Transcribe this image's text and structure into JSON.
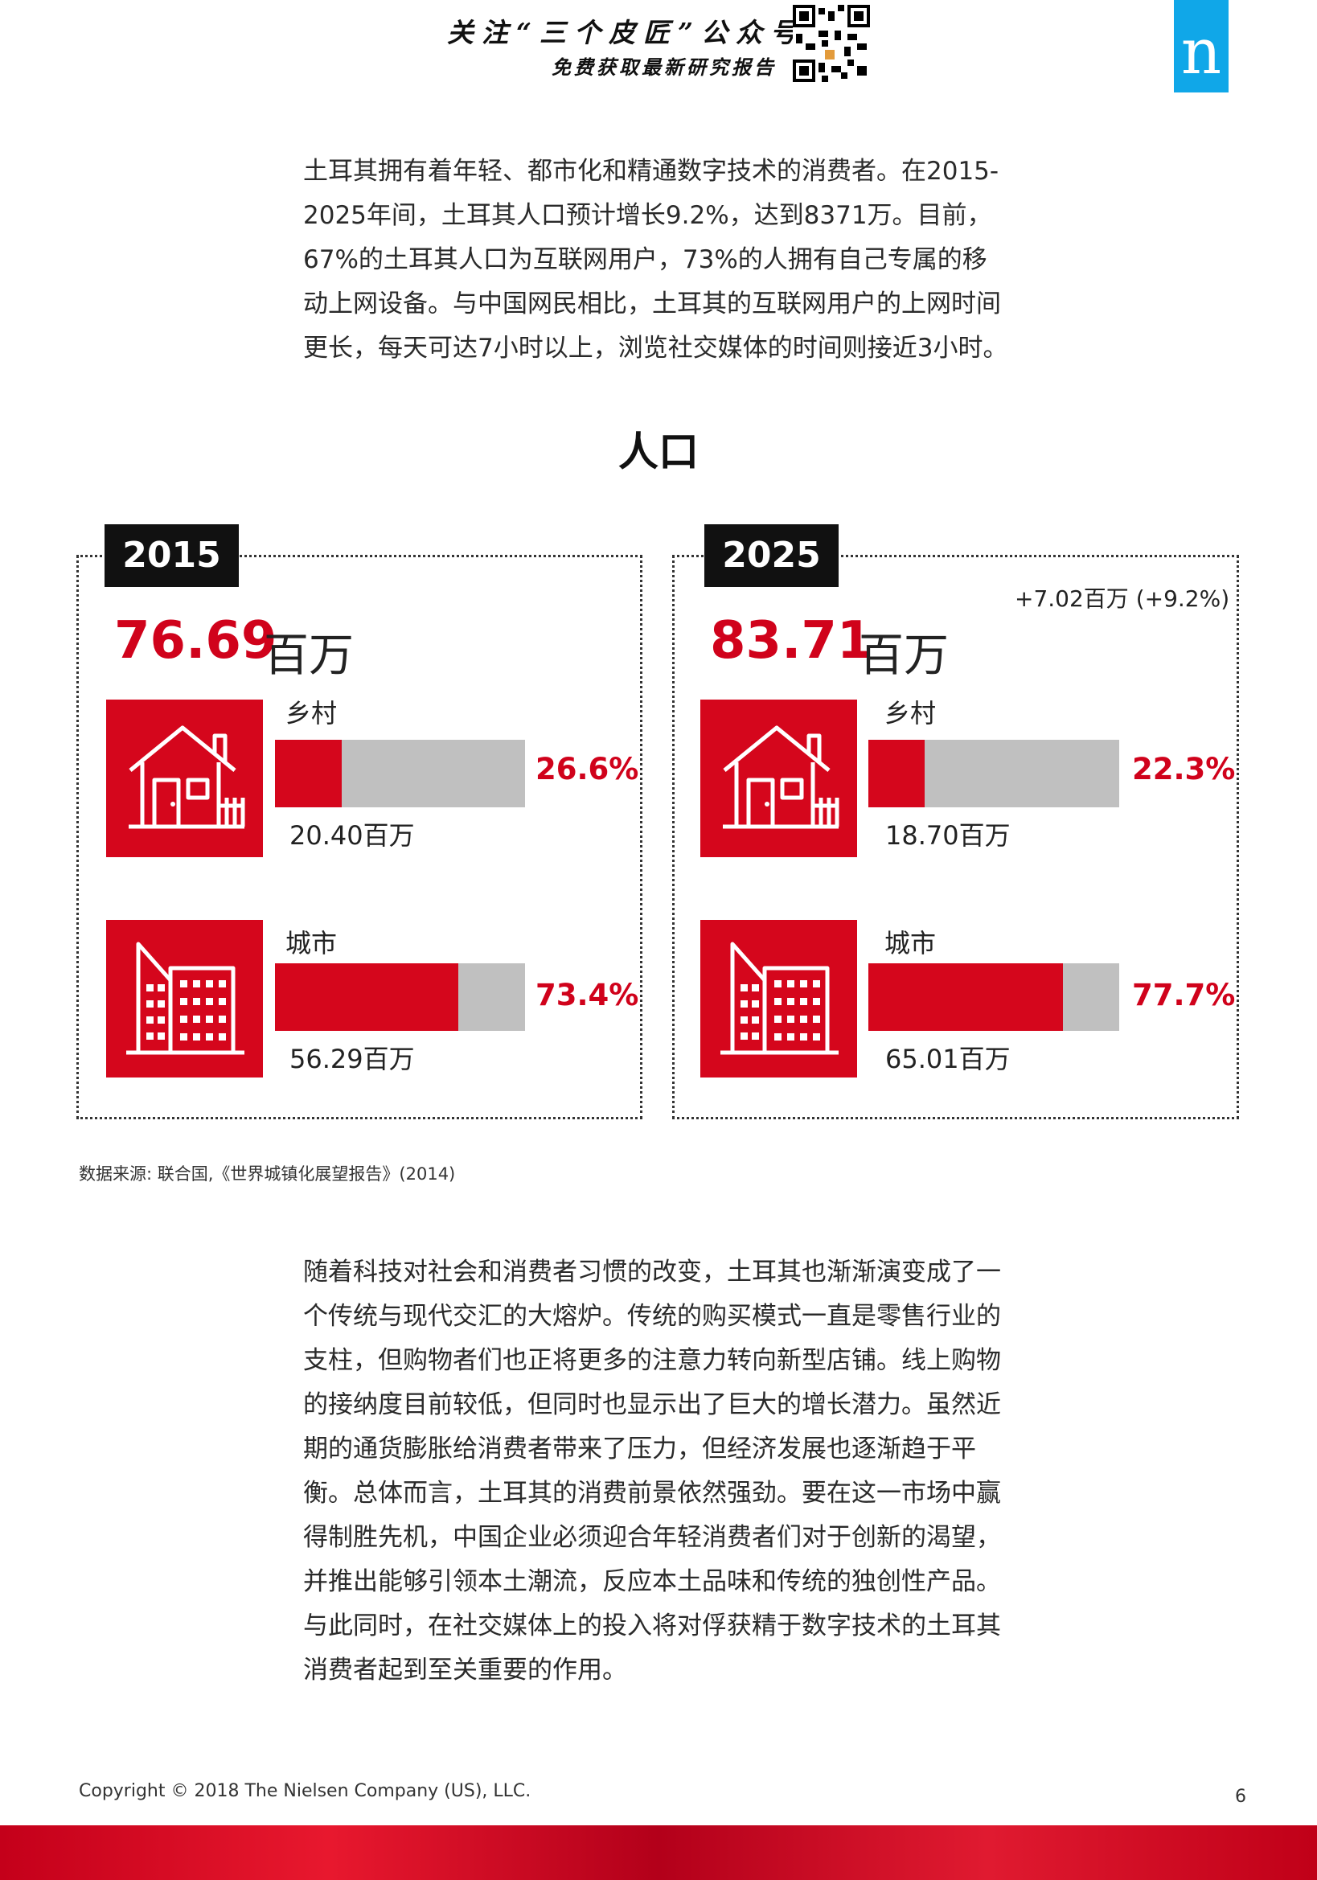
{
  "header": {
    "banner_line1": "关注“三个皮匠”公众号",
    "banner_line2": "免费获取最新研究报告",
    "logo_letter": "n",
    "qr_icon": "qr-code-icon"
  },
  "intro_paragraph": "土耳其拥有着年轻、都市化和精通数字技术的消费者。在2015-2025年间，土耳其人口预计增长9.2%，达到8371万。目前，67%的土耳其人口为互联网用户，73%的人拥有自己专属的移动上网设备。与中国网民相比，土耳其的互联网用户的上网时间更长，每天可达7小时以上，浏览社交媒体的时间则接近3小时。",
  "section_title": "人口",
  "panels": [
    {
      "year": "2015",
      "total": "76.69",
      "unit": "百万",
      "change": "",
      "rural": {
        "label": "乡村",
        "pct_label": "26.6%",
        "pct": 26.6,
        "value": "20.40百万",
        "icon": "house-icon"
      },
      "urban": {
        "label": "城市",
        "pct_label": "73.4%",
        "pct": 73.4,
        "value": "56.29百万",
        "icon": "city-buildings-icon"
      }
    },
    {
      "year": "2025",
      "total": "83.71",
      "unit": "百万",
      "change": "+7.02百万 (+9.2%)",
      "rural": {
        "label": "乡村",
        "pct_label": "22.3%",
        "pct": 22.3,
        "value": "18.70百万",
        "icon": "house-icon"
      },
      "urban": {
        "label": "城市",
        "pct_label": "77.7%",
        "pct": 77.7,
        "value": "65.01百万",
        "icon": "city-buildings-icon"
      }
    }
  ],
  "source": "数据来源: 联合国,《世界城镇化展望报告》(2014)",
  "body_paragraph": "随着科技对社会和消费者习惯的改变，土耳其也渐渐演变成了一个传统与现代交汇的大熔炉。传统的购买模式一直是零售行业的支柱，但购物者们也正将更多的注意力转向新型店铺。线上购物的接纳度目前较低，但同时也显示出了巨大的增长潜力。虽然近期的通货膨胀给消费者带来了压力，但经济发展也逐渐趋于平衡。总体而言，土耳其的消费前景依然强劲。要在这一市场中赢得制胜先机，中国企业必须迎合年轻消费者们对于创新的渴望，并推出能够引领本土潮流，反应本土品味和传统的独创性产品。与此同时，在社交媒体上的投入将对俘获精于数字技术的土耳其消费者起到至关重要的作用。",
  "footer": {
    "copyright": "Copyright © 2018 The Nielsen Company (US), LLC.",
    "page_number": "6"
  },
  "colors": {
    "accent_red": "#d5061c",
    "bar_gray": "#c0c0c0",
    "logo_blue": "#10a7e8"
  }
}
